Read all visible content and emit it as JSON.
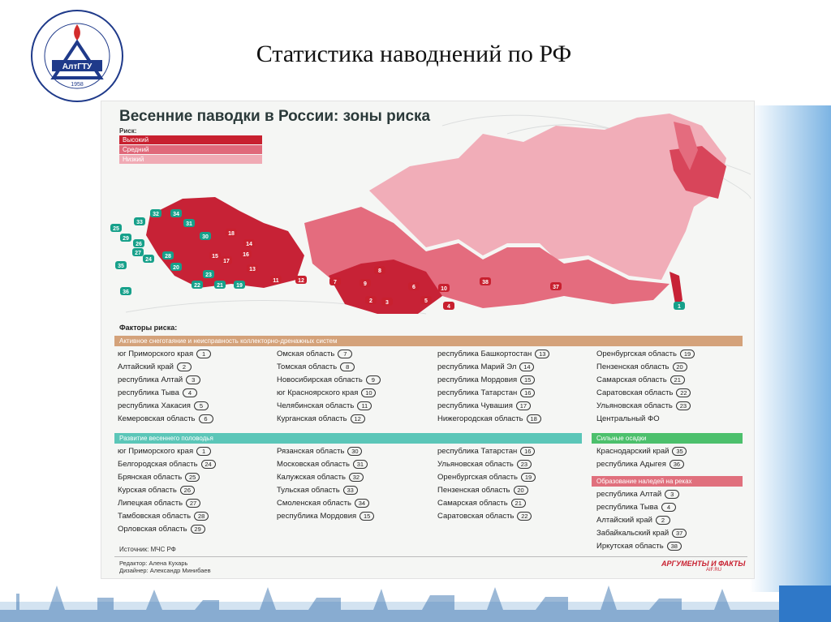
{
  "slide": {
    "title": "Статистика наводнений по РФ",
    "logo_ring_text": "АЛТАЙСКИЙ ГОСУДАРСТВЕННЫЙ ТЕХНИЧЕСКИЙ УНИВЕРСИТЕТ",
    "logo_letters": "АлтГТУ",
    "logo_year": "1958"
  },
  "infographic": {
    "title": "Весенние паводки в России: зоны риска",
    "risk_label": "Риск:",
    "risk_levels": [
      {
        "label": "Высокий",
        "color": "#c8202f"
      },
      {
        "label": "Средний",
        "color": "#e0697a"
      },
      {
        "label": "Низкий",
        "color": "#f0aab4"
      }
    ],
    "map_markers": [
      {
        "n": "1",
        "color": "#16a08a"
      },
      {
        "n": "2",
        "color": "#c8202f"
      },
      {
        "n": "3",
        "color": "#c8202f"
      },
      {
        "n": "4",
        "color": "#c8202f"
      },
      {
        "n": "5",
        "color": "#c8202f"
      },
      {
        "n": "6",
        "color": "#c8202f"
      },
      {
        "n": "7",
        "color": "#c8202f"
      },
      {
        "n": "8",
        "color": "#c8202f"
      },
      {
        "n": "9",
        "color": "#c8202f"
      },
      {
        "n": "10",
        "color": "#c8202f"
      },
      {
        "n": "11",
        "color": "#c8202f"
      },
      {
        "n": "12",
        "color": "#c8202f"
      },
      {
        "n": "13",
        "color": "#c8202f"
      },
      {
        "n": "14",
        "color": "#c8202f"
      },
      {
        "n": "15",
        "color": "#c8202f"
      },
      {
        "n": "16",
        "color": "#c8202f"
      },
      {
        "n": "17",
        "color": "#c8202f"
      },
      {
        "n": "18",
        "color": "#c8202f"
      },
      {
        "n": "19",
        "color": "#16a08a"
      },
      {
        "n": "20",
        "color": "#16a08a"
      },
      {
        "n": "21",
        "color": "#16a08a"
      },
      {
        "n": "22",
        "color": "#16a08a"
      },
      {
        "n": "23",
        "color": "#16a08a"
      },
      {
        "n": "24",
        "color": "#16a08a"
      },
      {
        "n": "25",
        "color": "#16a08a"
      },
      {
        "n": "26",
        "color": "#16a08a"
      },
      {
        "n": "27",
        "color": "#16a08a"
      },
      {
        "n": "28",
        "color": "#16a08a"
      },
      {
        "n": "29",
        "color": "#16a08a"
      },
      {
        "n": "30",
        "color": "#16a08a"
      },
      {
        "n": "31",
        "color": "#16a08a"
      },
      {
        "n": "32",
        "color": "#16a08a"
      },
      {
        "n": "33",
        "color": "#16a08a"
      },
      {
        "n": "34",
        "color": "#16a08a"
      },
      {
        "n": "35",
        "color": "#16a08a"
      },
      {
        "n": "36",
        "color": "#16a08a"
      },
      {
        "n": "37",
        "color": "#c8202f"
      },
      {
        "n": "38",
        "color": "#c8202f"
      }
    ],
    "factors_label": "Факторы риска:",
    "sections": {
      "snowmelt": {
        "title": "Активное снеготаяние и неисправность коллекторно-дренажных систем",
        "color": "#d4a27a",
        "columns": [
          [
            {
              "name": "юг Приморского края",
              "n": "1"
            },
            {
              "name": "Алтайский край",
              "n": "2"
            },
            {
              "name": "республика Алтай",
              "n": "3"
            },
            {
              "name": "республика Тыва",
              "n": "4"
            },
            {
              "name": "республика Хакасия",
              "n": "5"
            },
            {
              "name": "Кемеровская область",
              "n": "6"
            }
          ],
          [
            {
              "name": "Омская область",
              "n": "7"
            },
            {
              "name": "Томская область",
              "n": "8"
            },
            {
              "name": "Новосибирская область",
              "n": "9"
            },
            {
              "name": "юг Красноярского края",
              "n": "10"
            },
            {
              "name": "Челябинская область",
              "n": "11"
            },
            {
              "name": "Курганская область",
              "n": "12"
            }
          ],
          [
            {
              "name": "республика Башкортостан",
              "n": "13"
            },
            {
              "name": "республика Марий Эл",
              "n": "14"
            },
            {
              "name": "республика Мордовия",
              "n": "15"
            },
            {
              "name": "республика Татарстан",
              "n": "16"
            },
            {
              "name": "республика Чувашия",
              "n": "17"
            },
            {
              "name": "Нижегородская область",
              "n": "18"
            }
          ],
          [
            {
              "name": "Оренбургская область",
              "n": "19"
            },
            {
              "name": "Пензенская область",
              "n": "20"
            },
            {
              "name": "Самарская область",
              "n": "21"
            },
            {
              "name": "Саратовская область",
              "n": "22"
            },
            {
              "name": "Ульяновская область",
              "n": "23"
            },
            {
              "name": "Центральный ФО",
              "n": ""
            }
          ]
        ]
      },
      "flood": {
        "title": "Развитие весеннего половодья",
        "color": "#5bc6b8",
        "columns": [
          [
            {
              "name": "юг Приморского края",
              "n": "1"
            },
            {
              "name": "Белгородская область",
              "n": "24"
            },
            {
              "name": "Брянская область",
              "n": "25"
            },
            {
              "name": "Курская область",
              "n": "26"
            },
            {
              "name": "Липецкая область",
              "n": "27"
            },
            {
              "name": "Тамбовская область",
              "n": "28"
            },
            {
              "name": "Орловская область",
              "n": "29"
            }
          ],
          [
            {
              "name": "Рязанская область",
              "n": "30"
            },
            {
              "name": "Московская область",
              "n": "31"
            },
            {
              "name": "Калужская область",
              "n": "32"
            },
            {
              "name": "Тульская область",
              "n": "33"
            },
            {
              "name": "Смоленская область",
              "n": "34"
            },
            {
              "name": "республика Мордовия",
              "n": "15"
            }
          ],
          [
            {
              "name": "республика Татарстан",
              "n": "16"
            },
            {
              "name": "Ульяновская область",
              "n": "23"
            },
            {
              "name": "Оренбургская область",
              "n": "19"
            },
            {
              "name": "Пензенская область",
              "n": "20"
            },
            {
              "name": "Самарская область",
              "n": "21"
            },
            {
              "name": "Саратовская область",
              "n": "22"
            }
          ]
        ]
      },
      "rain": {
        "title": "Сильные осадки",
        "color": "#4cc06c",
        "items": [
          {
            "name": "Краснодарский край",
            "n": "35"
          },
          {
            "name": "республика Адыгея",
            "n": "36"
          }
        ]
      },
      "ice": {
        "title": "Образование наледей на реках",
        "color": "#e0707d",
        "items": [
          {
            "name": "республика Алтай",
            "n": "3"
          },
          {
            "name": "республика Тыва",
            "n": "4"
          },
          {
            "name": "Алтайский край",
            "n": "2"
          },
          {
            "name": "Забайкальский край",
            "n": "37"
          },
          {
            "name": "Иркутская область",
            "n": "38"
          }
        ]
      }
    },
    "source": "Источник: МЧС РФ",
    "editor": "Редактор: Алена Кухарь",
    "designer": "Дизайнер: Александр Минибаев",
    "brand": "АРГУМЕНТЫ И ФАКТЫ",
    "brand_site": "AIF.RU"
  }
}
